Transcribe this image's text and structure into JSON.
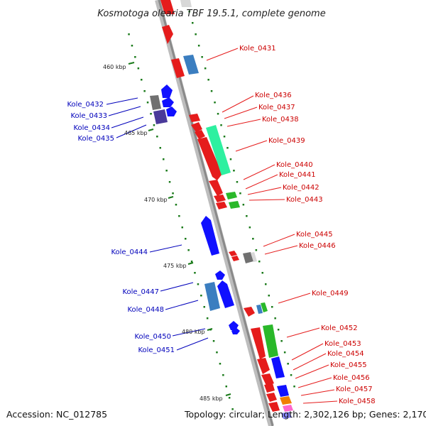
{
  "title": "Kosmotoga olearia TBF 19.5.1, complete genome",
  "footer": {
    "accession": "Accession: NC_012785",
    "stats": "Topology: circular; Length: 2,302,126 bp; Genes: 2,170"
  },
  "colors": {
    "forward_label": "#cc0000",
    "reverse_label": "#0000bb",
    "tick_mark": "#1a7a1a",
    "backbone": "#999999"
  },
  "scale_ticks": [
    "460 kbp",
    "465 kbp",
    "470 kbp",
    "475 kbp",
    "480 kbp",
    "485 kbp"
  ],
  "labels_right": [
    "Kole_0431",
    "Kole_0436",
    "Kole_0437",
    "Kole_0438",
    "Kole_0439",
    "Kole_0440",
    "Kole_0441",
    "Kole_0442",
    "Kole_0443",
    "Kole_0445",
    "Kole_0446",
    "Kole_0449",
    "Kole_0452",
    "Kole_0453",
    "Kole_0454",
    "Kole_0455",
    "Kole_0456",
    "Kole_0457",
    "Kole_0458"
  ],
  "labels_left": [
    "Kole_0432",
    "Kole_0433",
    "Kole_0434",
    "Kole_0435",
    "Kole_0444",
    "Kole_0447",
    "Kole_0448",
    "Kole_0450",
    "Kole_0451"
  ]
}
